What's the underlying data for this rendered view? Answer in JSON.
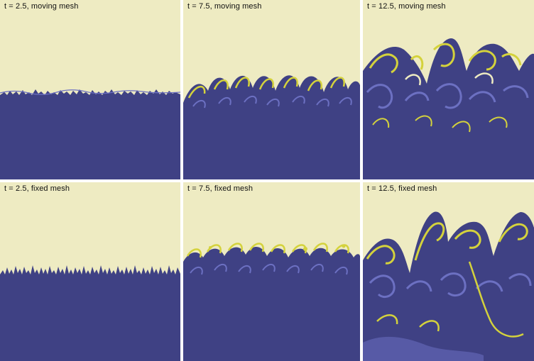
{
  "panels": [
    {
      "label": "t = 2.5, moving mesh",
      "time": 2.5,
      "mesh": "moving"
    },
    {
      "label": "t = 7.5, moving mesh",
      "time": 7.5,
      "mesh": "moving"
    },
    {
      "label": "t = 12.5, moving mesh",
      "time": 12.5,
      "mesh": "moving"
    },
    {
      "label": "t = 2.5, fixed mesh",
      "time": 2.5,
      "mesh": "fixed"
    },
    {
      "label": "t = 7.5, fixed mesh",
      "time": 7.5,
      "mesh": "fixed"
    },
    {
      "label": "t = 12.5, fixed mesh",
      "time": 12.5,
      "mesh": "fixed"
    }
  ],
  "colors": {
    "light_fluid": "#EEEBC2",
    "dark_fluid": "#3F4184",
    "mixing_purple": "#6C70C2",
    "mixing_yellow": "#D4D23C",
    "separator": "#FFFFFF"
  }
}
